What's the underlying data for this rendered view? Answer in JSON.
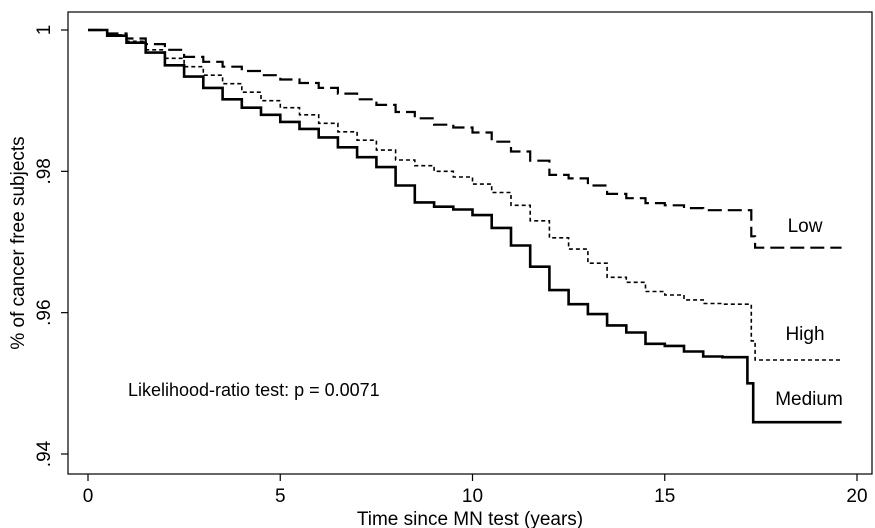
{
  "chart_data": {
    "type": "line",
    "title": "",
    "xlabel": "Time since MN test (years)",
    "ylabel": "% of cancer free subjects",
    "xlim": [
      0,
      20
    ],
    "ylim": [
      0.94,
      1.0
    ],
    "x_ticks": [
      0,
      5,
      10,
      15,
      20
    ],
    "x_tick_labels": [
      "0",
      "5",
      "10",
      "15",
      "20"
    ],
    "y_ticks": [
      0.94,
      0.96,
      0.98,
      1.0
    ],
    "y_tick_labels": [
      ".94",
      ".96",
      ".98",
      "1"
    ],
    "grid": false,
    "annotation": "Likelihood-ratio test: p = 0.0071",
    "series": [
      {
        "name": "Low",
        "line_style": "long-dash",
        "color": "#000000",
        "points": [
          [
            0,
            1.0
          ],
          [
            0.5,
            0.9995
          ],
          [
            1,
            0.9988
          ],
          [
            1.5,
            0.998
          ],
          [
            2,
            0.9972
          ],
          [
            2.5,
            0.9962
          ],
          [
            3,
            0.9955
          ],
          [
            3.5,
            0.9948
          ],
          [
            4,
            0.9942
          ],
          [
            4.5,
            0.9936
          ],
          [
            5,
            0.993
          ],
          [
            5.5,
            0.9925
          ],
          [
            6,
            0.9918
          ],
          [
            6.5,
            0.991
          ],
          [
            7,
            0.9902
          ],
          [
            7.5,
            0.9894
          ],
          [
            8,
            0.9884
          ],
          [
            8.5,
            0.9875
          ],
          [
            9,
            0.9866
          ],
          [
            9.5,
            0.9862
          ],
          [
            10,
            0.9855
          ],
          [
            10.5,
            0.9842
          ],
          [
            11,
            0.9828
          ],
          [
            11.5,
            0.9815
          ],
          [
            12,
            0.9795
          ],
          [
            12.5,
            0.979
          ],
          [
            13,
            0.978
          ],
          [
            13.5,
            0.9768
          ],
          [
            14,
            0.9762
          ],
          [
            14.5,
            0.9755
          ],
          [
            15,
            0.9752
          ],
          [
            15.5,
            0.9748
          ],
          [
            16,
            0.9745
          ],
          [
            16.5,
            0.9745
          ],
          [
            17,
            0.9745
          ],
          [
            17.2,
            0.9745
          ],
          [
            17.25,
            0.9708
          ],
          [
            17.35,
            0.9692
          ],
          [
            18,
            0.9692
          ],
          [
            19.6,
            0.9692
          ]
        ]
      },
      {
        "name": "High",
        "line_style": "short-dash",
        "color": "#000000",
        "points": [
          [
            0,
            1.0
          ],
          [
            0.5,
            0.9993
          ],
          [
            1,
            0.9984
          ],
          [
            1.5,
            0.9972
          ],
          [
            2,
            0.996
          ],
          [
            2.5,
            0.9948
          ],
          [
            3,
            0.9936
          ],
          [
            3.5,
            0.9924
          ],
          [
            4,
            0.9912
          ],
          [
            4.5,
            0.99
          ],
          [
            5,
            0.989
          ],
          [
            5.5,
            0.988
          ],
          [
            6,
            0.9868
          ],
          [
            6.5,
            0.9856
          ],
          [
            7,
            0.9844
          ],
          [
            7.5,
            0.983
          ],
          [
            8,
            0.9816
          ],
          [
            8.5,
            0.9808
          ],
          [
            9,
            0.98
          ],
          [
            9.5,
            0.9792
          ],
          [
            10,
            0.9782
          ],
          [
            10.5,
            0.977
          ],
          [
            11,
            0.9752
          ],
          [
            11.5,
            0.973
          ],
          [
            12,
            0.9706
          ],
          [
            12.5,
            0.969
          ],
          [
            13,
            0.967
          ],
          [
            13.5,
            0.965
          ],
          [
            14,
            0.9643
          ],
          [
            14.5,
            0.963
          ],
          [
            15,
            0.9625
          ],
          [
            15.5,
            0.9618
          ],
          [
            16,
            0.9613
          ],
          [
            16.5,
            0.9612
          ],
          [
            17,
            0.9612
          ],
          [
            17.2,
            0.9612
          ],
          [
            17.25,
            0.956
          ],
          [
            17.35,
            0.9533
          ],
          [
            18,
            0.9533
          ],
          [
            19.6,
            0.9533
          ]
        ]
      },
      {
        "name": "Medium",
        "line_style": "solid",
        "color": "#000000",
        "points": [
          [
            0,
            1.0
          ],
          [
            0.5,
            0.9992
          ],
          [
            1,
            0.9982
          ],
          [
            1.5,
            0.9968
          ],
          [
            2,
            0.995
          ],
          [
            2.5,
            0.9934
          ],
          [
            3,
            0.9918
          ],
          [
            3.5,
            0.9902
          ],
          [
            4,
            0.989
          ],
          [
            4.5,
            0.988
          ],
          [
            5,
            0.987
          ],
          [
            5.5,
            0.986
          ],
          [
            6,
            0.9848
          ],
          [
            6.5,
            0.9834
          ],
          [
            7,
            0.982
          ],
          [
            7.5,
            0.9806
          ],
          [
            8,
            0.978
          ],
          [
            8.5,
            0.9756
          ],
          [
            9,
            0.975
          ],
          [
            9.5,
            0.9746
          ],
          [
            10,
            0.9738
          ],
          [
            10.5,
            0.972
          ],
          [
            11,
            0.9695
          ],
          [
            11.5,
            0.9665
          ],
          [
            12,
            0.9632
          ],
          [
            12.5,
            0.9612
          ],
          [
            13,
            0.9598
          ],
          [
            13.5,
            0.9582
          ],
          [
            14,
            0.9572
          ],
          [
            14.5,
            0.9556
          ],
          [
            15,
            0.9553
          ],
          [
            15.5,
            0.9545
          ],
          [
            16,
            0.9538
          ],
          [
            16.5,
            0.9537
          ],
          [
            17,
            0.9537
          ],
          [
            17.1,
            0.9537
          ],
          [
            17.15,
            0.95
          ],
          [
            17.3,
            0.9445
          ],
          [
            18,
            0.9445
          ],
          [
            19.6,
            0.9445
          ]
        ]
      }
    ]
  }
}
